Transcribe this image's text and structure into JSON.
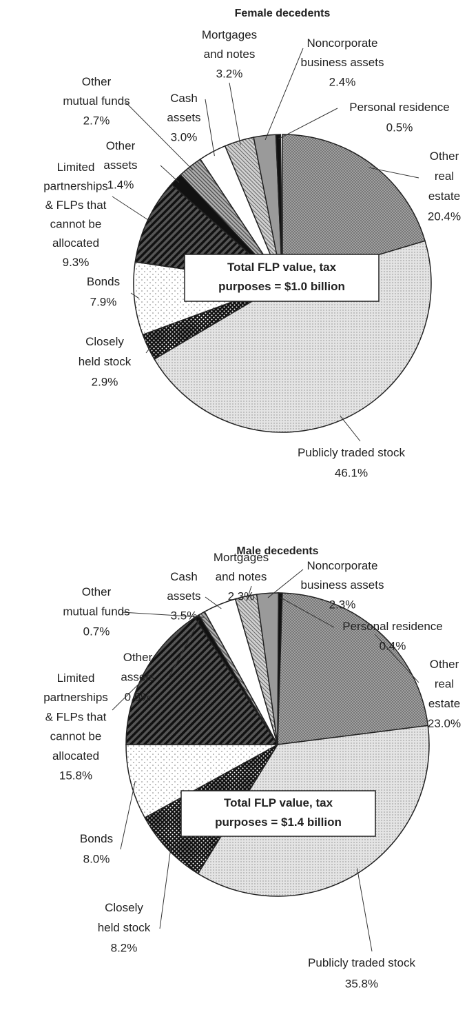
{
  "chart_data": [
    {
      "type": "pie",
      "title": "Female decedents",
      "note": "Total FLP value, tax\npurposes = $1.0 billion",
      "categories": [
        "Other\nreal\nestate",
        "Publicly traded stock",
        "Closely\nheld stock",
        "Bonds",
        "Limited\npartnerships\n& FLPs that\ncannot be\nallocated",
        "Other\nassets",
        "Other\nmutual funds",
        "Cash\nassets",
        "Mortgages\nand notes",
        "Noncorporate\nbusiness assets",
        "Personal residence"
      ],
      "values": [
        20.4,
        46.1,
        2.9,
        7.9,
        9.3,
        1.4,
        2.7,
        3.0,
        3.2,
        2.4,
        0.5
      ],
      "value_labels": [
        "20.4%",
        "46.1%",
        "2.9%",
        "7.9%",
        "9.3%",
        "1.4%",
        "2.7%",
        "3.0%",
        "3.2%",
        "2.4%",
        "0.5%"
      ],
      "colors": [
        "#a8a8a8",
        "#e4e4e4",
        "#111111",
        "#ffffff",
        "#555555",
        "#111111",
        "#b0b0b0",
        "#ffffff",
        "#d0d0d0",
        "#9a9a9a",
        "#111111"
      ]
    },
    {
      "type": "pie",
      "title": "Male decedents",
      "note": "Total FLP value, tax\npurposes = $1.4 billion",
      "categories": [
        "Other\nreal\nestate",
        "Publicly traded stock",
        "Closely\nheld stock",
        "Bonds",
        "Limited\npartnerships\n& FLPs that\ncannot be\nallocated",
        "Other\nassets",
        "Other\nmutual funds",
        "Cash\nassets",
        "Mortgages\nand notes",
        "Noncorporate\nbusiness assets",
        "Personal residence"
      ],
      "values": [
        23.0,
        35.8,
        8.2,
        8.0,
        15.8,
        0.5,
        0.7,
        3.5,
        2.3,
        2.3,
        0.4
      ],
      "value_labels": [
        "23.0%",
        "35.8%",
        "8.2%",
        "8.0%",
        "15.8%",
        "0.5%",
        "0.7%",
        "3.5%",
        "2.3%",
        "2.3%",
        "0.4%"
      ],
      "colors": [
        "#a8a8a8",
        "#e4e4e4",
        "#111111",
        "#ffffff",
        "#555555",
        "#111111",
        "#b0b0b0",
        "#ffffff",
        "#d0d0d0",
        "#9a9a9a",
        "#111111"
      ]
    }
  ]
}
